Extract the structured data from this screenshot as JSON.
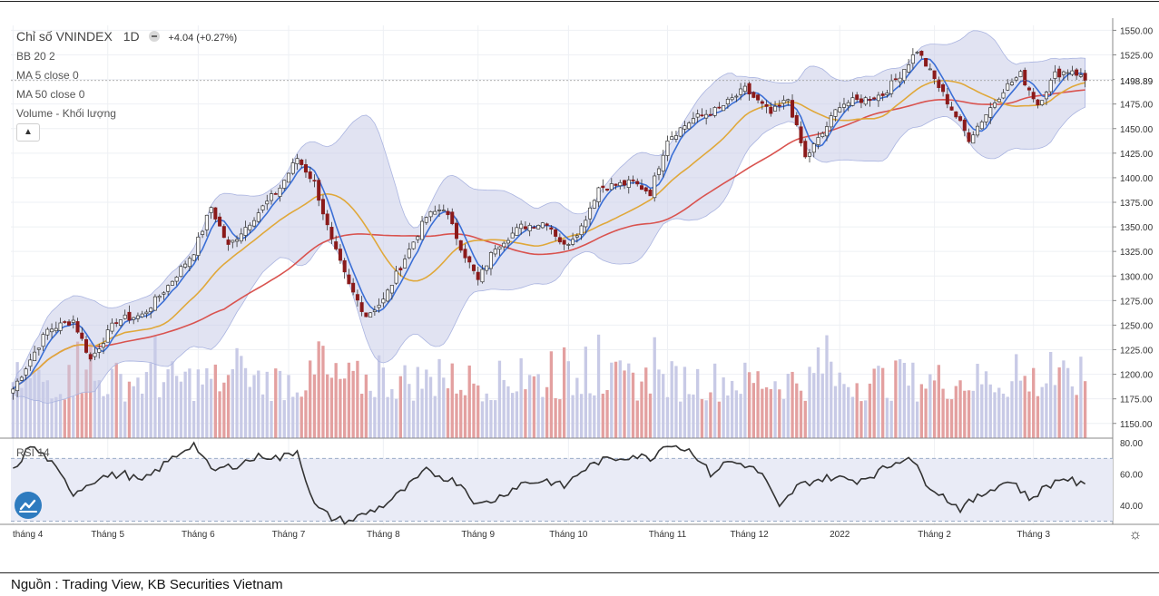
{
  "legend": {
    "title": "Chỉ số VNINDEX",
    "interval": "1D",
    "change": "+4.04 (+0.27%)",
    "bb": "BB 20 2",
    "ma5": "MA 5 close 0",
    "ma50": "MA 50 close 0",
    "volume": "Volume - Khối lượng",
    "rsi": "RSI 14"
  },
  "icons": {
    "collapse": "chevron-up-icon",
    "logo": "tradingview-logo-icon",
    "settings": "gear-icon"
  },
  "source": "Nguồn : Trading View, KB Securities Vietnam",
  "colors": {
    "up": "#ffffff",
    "down": "#8b1a1a",
    "ma5": "#3b6fd6",
    "ma20": "#e0a83a",
    "ma50": "#d9534f",
    "bands": "#c9cce8",
    "vol_up": "#c8cae6",
    "vol_down": "#e3a0a0",
    "rsi": "#333333"
  },
  "chart_data": {
    "type": "candlestick",
    "x_labels": [
      "tháng 4",
      "Tháng 5",
      "Tháng 6",
      "Tháng 7",
      "Tháng 8",
      "Tháng 9",
      "Tháng 10",
      "Tháng 11",
      "Tháng 12",
      "2022",
      "Tháng 2",
      "Tháng 3"
    ],
    "price_axis": {
      "ticks": [
        1150,
        1175,
        1200,
        1225,
        1250,
        1275,
        1300,
        1325,
        1350,
        1375,
        1400,
        1425,
        1450,
        1475,
        1500,
        1525,
        1550
      ],
      "range": [
        1135,
        1555
      ],
      "tick_labels": [
        "1150.00",
        "1175.00",
        "1200.00",
        "1225.00",
        "1250.00",
        "1275.00",
        "1300.00",
        "1325.00",
        "1350.00",
        "1375.00",
        "1400.00",
        "1425.00",
        "1450.00",
        "1475.00",
        "",
        "1525.00",
        "1550.00"
      ]
    },
    "last_price": "1498.89",
    "rsi_axis": {
      "ticks": [
        40,
        60,
        80
      ],
      "tick_labels": [
        "40.00",
        "60.00",
        "80.00"
      ],
      "range": [
        28,
        80
      ],
      "bands": [
        30,
        70
      ]
    },
    "close_anchors": [
      [
        0,
        1185
      ],
      [
        8,
        1245
      ],
      [
        14,
        1255
      ],
      [
        18,
        1215
      ],
      [
        24,
        1255
      ],
      [
        30,
        1260
      ],
      [
        36,
        1290
      ],
      [
        42,
        1325
      ],
      [
        46,
        1370
      ],
      [
        50,
        1330
      ],
      [
        56,
        1360
      ],
      [
        62,
        1390
      ],
      [
        66,
        1420
      ],
      [
        70,
        1395
      ],
      [
        74,
        1335
      ],
      [
        78,
        1290
      ],
      [
        82,
        1260
      ],
      [
        86,
        1275
      ],
      [
        90,
        1310
      ],
      [
        96,
        1360
      ],
      [
        100,
        1370
      ],
      [
        104,
        1330
      ],
      [
        108,
        1295
      ],
      [
        112,
        1330
      ],
      [
        118,
        1350
      ],
      [
        124,
        1355
      ],
      [
        128,
        1330
      ],
      [
        132,
        1350
      ],
      [
        136,
        1390
      ],
      [
        144,
        1395
      ],
      [
        148,
        1385
      ],
      [
        152,
        1440
      ],
      [
        158,
        1460
      ],
      [
        164,
        1470
      ],
      [
        170,
        1490
      ],
      [
        176,
        1465
      ],
      [
        180,
        1480
      ],
      [
        184,
        1420
      ],
      [
        188,
        1445
      ],
      [
        192,
        1475
      ],
      [
        198,
        1480
      ],
      [
        202,
        1485
      ],
      [
        206,
        1505
      ],
      [
        210,
        1530
      ],
      [
        214,
        1500
      ],
      [
        218,
        1470
      ],
      [
        222,
        1440
      ],
      [
        226,
        1465
      ],
      [
        230,
        1490
      ],
      [
        234,
        1505
      ],
      [
        238,
        1475
      ],
      [
        242,
        1505
      ],
      [
        246,
        1510
      ],
      [
        249,
        1499
      ]
    ],
    "rsi_anchors": [
      [
        0,
        62
      ],
      [
        4,
        78
      ],
      [
        8,
        70
      ],
      [
        14,
        48
      ],
      [
        20,
        58
      ],
      [
        26,
        60
      ],
      [
        30,
        55
      ],
      [
        36,
        68
      ],
      [
        42,
        80
      ],
      [
        46,
        62
      ],
      [
        52,
        66
      ],
      [
        58,
        72
      ],
      [
        62,
        70
      ],
      [
        66,
        75
      ],
      [
        70,
        40
      ],
      [
        74,
        32
      ],
      [
        78,
        30
      ],
      [
        82,
        35
      ],
      [
        86,
        40
      ],
      [
        90,
        48
      ],
      [
        96,
        62
      ],
      [
        100,
        58
      ],
      [
        104,
        54
      ],
      [
        108,
        40
      ],
      [
        112,
        44
      ],
      [
        118,
        54
      ],
      [
        124,
        56
      ],
      [
        128,
        52
      ],
      [
        132,
        62
      ],
      [
        136,
        68
      ],
      [
        144,
        72
      ],
      [
        148,
        70
      ],
      [
        152,
        80
      ],
      [
        158,
        74
      ],
      [
        162,
        60
      ],
      [
        166,
        68
      ],
      [
        170,
        66
      ],
      [
        174,
        60
      ],
      [
        178,
        38
      ],
      [
        182,
        52
      ],
      [
        186,
        56
      ],
      [
        190,
        58
      ],
      [
        196,
        56
      ],
      [
        200,
        60
      ],
      [
        204,
        66
      ],
      [
        208,
        72
      ],
      [
        212,
        55
      ],
      [
        216,
        46
      ],
      [
        220,
        38
      ],
      [
        224,
        45
      ],
      [
        228,
        52
      ],
      [
        232,
        56
      ],
      [
        236,
        44
      ],
      [
        240,
        52
      ],
      [
        244,
        58
      ],
      [
        249,
        52
      ]
    ],
    "sessions": 250
  }
}
